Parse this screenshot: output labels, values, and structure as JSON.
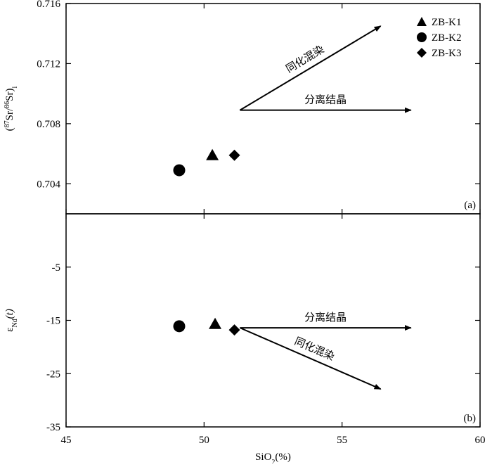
{
  "chart_data": [
    {
      "type": "scatter",
      "panel": "a",
      "panel_tag": "(a)",
      "ylabel": "(87Sr/86Sr)i",
      "ylim": [
        0.702,
        0.716
      ],
      "yticks": [
        0.704,
        0.708,
        0.712,
        0.716
      ],
      "ytick_labels": [
        "0.704",
        "0.708",
        "0.712",
        "0.716"
      ],
      "series": [
        {
          "name": "ZB-K1",
          "marker": "triangle",
          "x": [
            50.3
          ],
          "y": [
            0.7059
          ]
        },
        {
          "name": "ZB-K2",
          "marker": "circle",
          "x": [
            49.1
          ],
          "y": [
            0.7049
          ]
        },
        {
          "name": "ZB-K3",
          "marker": "diamond",
          "x": [
            51.1
          ],
          "y": [
            0.7059
          ]
        }
      ],
      "arrows": [
        {
          "label": "同化混染",
          "from": [
            51.3,
            0.7089
          ],
          "to": [
            56.4,
            0.7145
          ]
        },
        {
          "label": "分离结晶",
          "from": [
            51.3,
            0.7089
          ],
          "to": [
            57.5,
            0.7089
          ]
        }
      ],
      "legend": {
        "placement": "top-right"
      }
    },
    {
      "type": "scatter",
      "panel": "b",
      "panel_tag": "(b)",
      "ylabel": "εNd(t)",
      "ylim": [
        -35,
        5
      ],
      "yticks": [
        -35,
        -25,
        -15,
        -5
      ],
      "ytick_labels": [
        "-35",
        "-25",
        "-15",
        "-5"
      ],
      "series": [
        {
          "name": "ZB-K1",
          "marker": "triangle",
          "x": [
            50.4
          ],
          "y": [
            -15.7
          ]
        },
        {
          "name": "ZB-K2",
          "marker": "circle",
          "x": [
            49.1
          ],
          "y": [
            -16.1
          ]
        },
        {
          "name": "ZB-K3",
          "marker": "diamond",
          "x": [
            51.1
          ],
          "y": [
            -16.8
          ]
        }
      ],
      "arrows": [
        {
          "label": "分离结晶",
          "from": [
            51.3,
            -16.4
          ],
          "to": [
            57.5,
            -16.4
          ]
        },
        {
          "label": "同化混染",
          "from": [
            51.3,
            -16.4
          ],
          "to": [
            56.4,
            -27.9
          ]
        }
      ]
    }
  ],
  "x_axis": {
    "label": "SiO2(%)",
    "xlim": [
      45,
      60
    ],
    "ticks": [
      45,
      50,
      55,
      60
    ],
    "tick_labels": [
      "45",
      "50",
      "55",
      "60"
    ]
  },
  "legend_entries": [
    {
      "name": "ZB-K1",
      "marker": "triangle"
    },
    {
      "name": "ZB-K2",
      "marker": "circle"
    },
    {
      "name": "ZB-K3",
      "marker": "diamond"
    }
  ],
  "colors": {
    "ink": "#000000",
    "background": "#ffffff"
  }
}
